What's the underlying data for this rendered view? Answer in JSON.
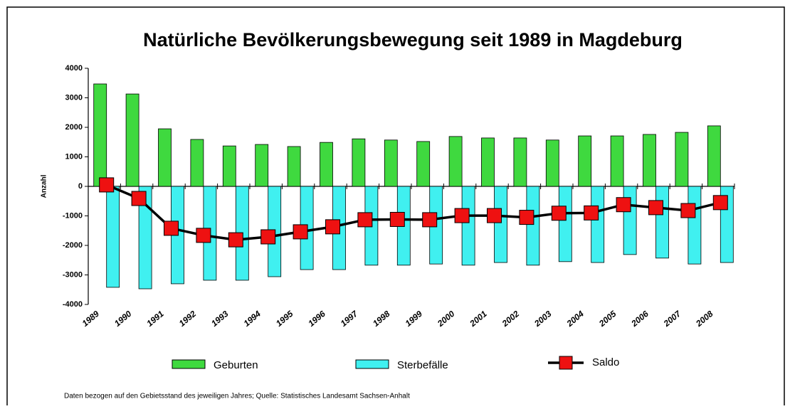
{
  "chart_data": {
    "type": "bar",
    "title": "Natürliche Bevölkerungsbewegung seit 1989 in Magdeburg",
    "y_label": "Anzahl",
    "footnote": "Daten bezogen auf den Gebietsstand des jeweiligen Jahres; Quelle: Statistisches Landesamt Sachsen-Anhalt",
    "categories": [
      "1989",
      "1990",
      "1991",
      "1992",
      "1993",
      "1994",
      "1995",
      "1996",
      "1997",
      "1998",
      "1999",
      "2000",
      "2001",
      "2002",
      "2003",
      "2004",
      "2005",
      "2006",
      "2007",
      "2008"
    ],
    "series": [
      {
        "name": "Geburten",
        "type": "bar",
        "color": "#3fd93f",
        "values": [
          3470,
          3130,
          1950,
          1590,
          1370,
          1420,
          1350,
          1490,
          1610,
          1570,
          1520,
          1690,
          1640,
          1640,
          1570,
          1710,
          1710,
          1760,
          1830,
          2050
        ]
      },
      {
        "name": "Sterbefälle",
        "type": "bar",
        "color": "#40f0f0",
        "values": [
          -3420,
          -3470,
          -3300,
          -3180,
          -3180,
          -3060,
          -2820,
          -2820,
          -2670,
          -2670,
          -2630,
          -2670,
          -2580,
          -2670,
          -2550,
          -2580,
          -2310,
          -2430,
          -2630,
          -2580
        ]
      },
      {
        "name": "Saldo",
        "type": "line",
        "color": "#000000",
        "marker_color": "#ee1111",
        "values": [
          50,
          -410,
          -1420,
          -1660,
          -1810,
          -1710,
          -1540,
          -1370,
          -1130,
          -1120,
          -1130,
          -990,
          -990,
          -1050,
          -910,
          -900,
          -620,
          -720,
          -820,
          -550
        ]
      }
    ],
    "ylim": [
      -4000,
      4000
    ],
    "yticks": [
      -4000,
      -3000,
      -2000,
      -1000,
      0,
      1000,
      2000,
      3000,
      4000
    ],
    "grid": false,
    "legend": "bottom"
  }
}
